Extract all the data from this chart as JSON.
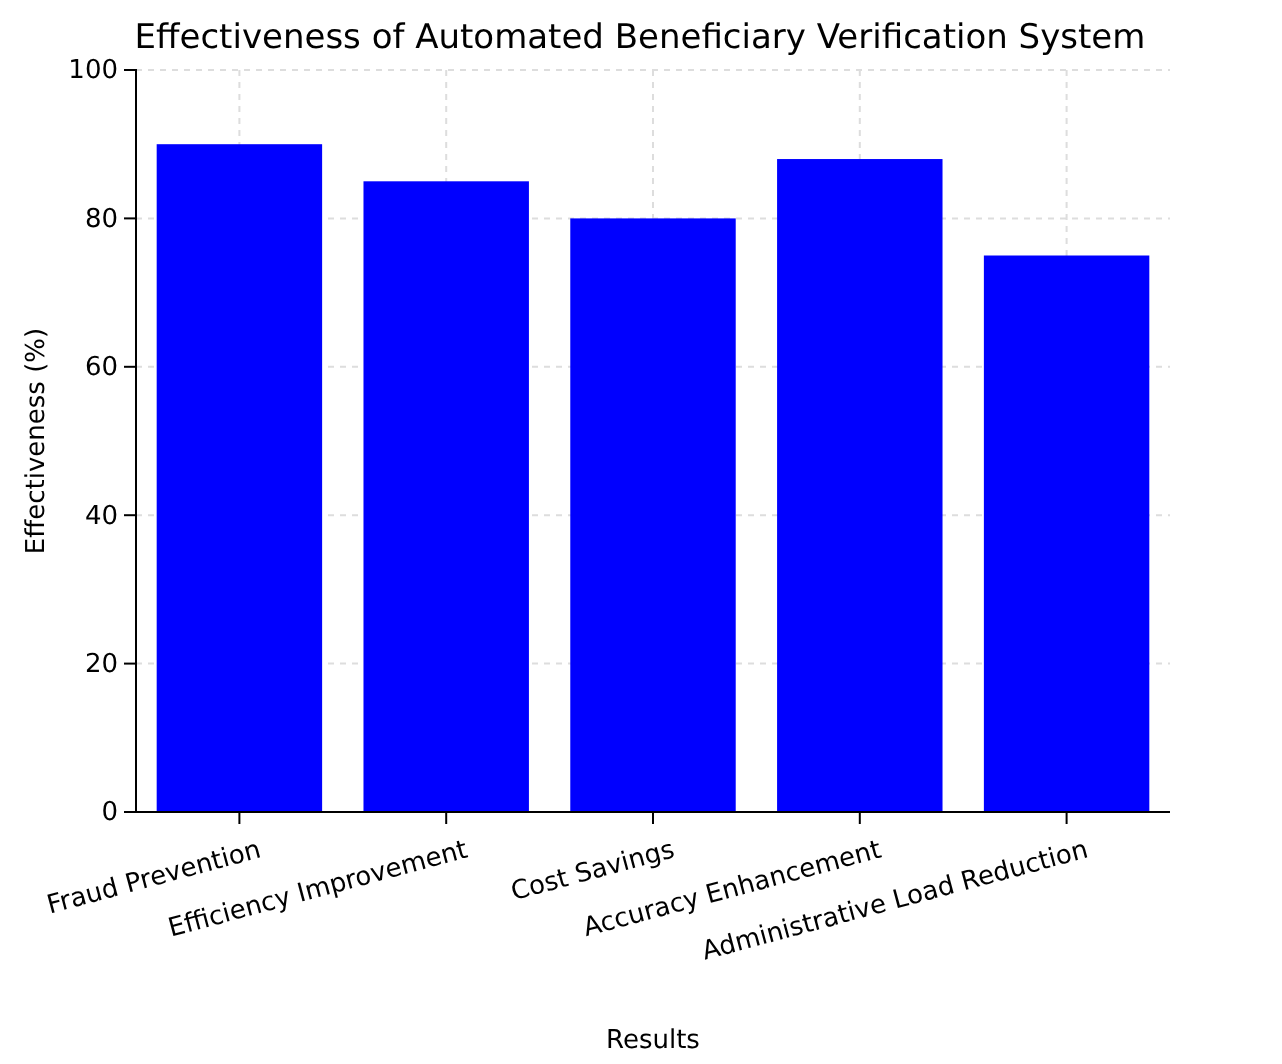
{
  "chart_data": {
    "type": "bar",
    "title": "Effectiveness of Automated Beneficiary Verification System",
    "xlabel": "Results",
    "ylabel": "Effectiveness (%)",
    "categories": [
      "Fraud Prevention",
      "Efficiency Improvement",
      "Cost Savings",
      "Accuracy Enhancement",
      "Administrative Load Reduction"
    ],
    "values": [
      90,
      85,
      80,
      88,
      75
    ],
    "color": "#0000ff",
    "ylim": [
      0,
      100
    ],
    "yticks": [
      0,
      20,
      40,
      60,
      80,
      100
    ],
    "grid": true
  }
}
